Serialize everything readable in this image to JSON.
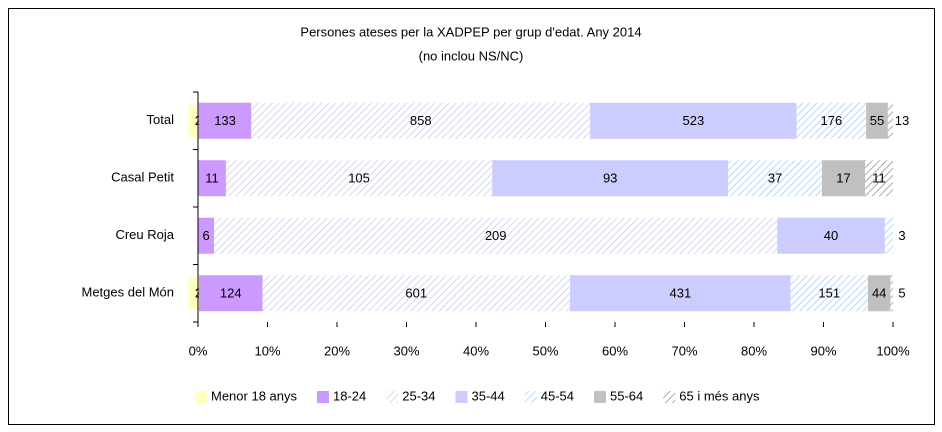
{
  "chart_data": {
    "type": "bar",
    "orientation": "horizontal",
    "stacking": "percent",
    "title": "Persones ateses per la XADPEP per grup d'edat. Any 2014",
    "subtitle": "(no inclou NS/NC)",
    "categories": [
      "Total",
      "Casal Petit",
      "Creu Roja",
      "Metges del Món"
    ],
    "series": [
      {
        "name": "Menor 18 anys",
        "color": "#ffffc0",
        "hatch": false,
        "values": [
          2,
          null,
          null,
          2
        ]
      },
      {
        "name": "18-24",
        "color": "#cc99ff",
        "hatch": false,
        "values": [
          133,
          11,
          6,
          124
        ]
      },
      {
        "name": "25-34",
        "color": "#c8c8f0",
        "hatch": true,
        "values": [
          858,
          105,
          209,
          601
        ]
      },
      {
        "name": "35-44",
        "color": "#ccccff",
        "hatch": false,
        "values": [
          523,
          93,
          40,
          431
        ]
      },
      {
        "name": "45-54",
        "color": "#99ccff",
        "hatch": true,
        "values": [
          176,
          37,
          3,
          151
        ]
      },
      {
        "name": "55-64",
        "color": "#c0c0c0",
        "hatch": false,
        "values": [
          55,
          17,
          null,
          44
        ]
      },
      {
        "name": "65 i més anys",
        "color": "#909090",
        "hatch": true,
        "values": [
          13,
          11,
          null,
          5
        ]
      }
    ],
    "xlim": [
      0,
      100
    ],
    "xticks": [
      {
        "value": 0,
        "label": "0%"
      },
      {
        "value": 10,
        "label": "10%"
      },
      {
        "value": 20,
        "label": "20%"
      },
      {
        "value": 30,
        "label": "30%"
      },
      {
        "value": 40,
        "label": "40%"
      },
      {
        "value": 50,
        "label": "50%"
      },
      {
        "value": 60,
        "label": "60%"
      },
      {
        "value": 70,
        "label": "70%"
      },
      {
        "value": 80,
        "label": "80%"
      },
      {
        "value": 90,
        "label": "90%"
      },
      {
        "value": 100,
        "label": "100%"
      }
    ],
    "grid": false,
    "legend": "bottom"
  }
}
